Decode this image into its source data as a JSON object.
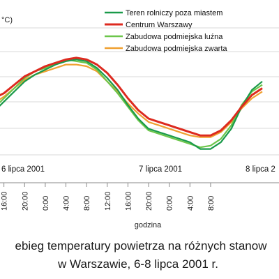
{
  "chart_data": {
    "type": "line",
    "ylabel_fragment": "°C)",
    "xlabel": "godzina",
    "x_start_label": "12:00",
    "x_step_hours": 4,
    "xtick_labels": [
      "16:00",
      "20:00",
      "0:00",
      "4:00",
      "8:00",
      "12:00",
      "16:00",
      "20:00",
      "0:00",
      "4:00",
      "8:00"
    ],
    "day_labels": [
      "6 lipca 2001",
      "7 lipca 2001",
      "8 lipca 2"
    ],
    "legend_position": "top-right",
    "grid": "horizontal",
    "series": [
      {
        "name": "Teren rolniczy poza miastem",
        "color": "#1a9a4a",
        "points": [
          [
            0,
            0.4
          ],
          [
            2,
            0.42
          ],
          [
            4,
            0.48
          ],
          [
            6,
            0.54
          ],
          [
            8,
            0.6
          ],
          [
            10,
            0.64
          ],
          [
            12,
            0.67
          ],
          [
            14,
            0.7
          ],
          [
            16,
            0.72
          ],
          [
            18,
            0.73
          ],
          [
            20,
            0.72
          ],
          [
            22,
            0.68
          ],
          [
            24,
            0.62
          ],
          [
            26,
            0.55
          ],
          [
            28,
            0.46
          ],
          [
            30,
            0.38
          ],
          [
            32,
            0.32
          ],
          [
            34,
            0.3
          ],
          [
            36,
            0.28
          ],
          [
            38,
            0.26
          ],
          [
            40,
            0.24
          ],
          [
            42,
            0.2
          ],
          [
            44,
            0.2
          ],
          [
            46,
            0.24
          ],
          [
            48,
            0.32
          ],
          [
            50,
            0.45
          ],
          [
            52,
            0.55
          ],
          [
            54,
            0.6
          ]
        ]
      },
      {
        "name": "Centrum Warszawy",
        "color": "#dd2a1f",
        "points": [
          [
            0,
            0.48
          ],
          [
            2,
            0.5
          ],
          [
            4,
            0.53
          ],
          [
            6,
            0.58
          ],
          [
            8,
            0.63
          ],
          [
            10,
            0.66
          ],
          [
            12,
            0.69
          ],
          [
            14,
            0.71
          ],
          [
            16,
            0.73
          ],
          [
            18,
            0.74
          ],
          [
            20,
            0.73
          ],
          [
            22,
            0.7
          ],
          [
            24,
            0.65
          ],
          [
            26,
            0.58
          ],
          [
            28,
            0.5
          ],
          [
            30,
            0.43
          ],
          [
            32,
            0.38
          ],
          [
            34,
            0.36
          ],
          [
            36,
            0.34
          ],
          [
            38,
            0.32
          ],
          [
            40,
            0.3
          ],
          [
            42,
            0.28
          ],
          [
            44,
            0.28
          ],
          [
            46,
            0.31
          ],
          [
            48,
            0.37
          ],
          [
            50,
            0.45
          ],
          [
            52,
            0.52
          ],
          [
            54,
            0.56
          ]
        ]
      },
      {
        "name": "Zabudowa podmiejska luźna",
        "color": "#6cc64a",
        "points": [
          [
            0,
            0.42
          ],
          [
            2,
            0.44
          ],
          [
            4,
            0.5
          ],
          [
            6,
            0.56
          ],
          [
            8,
            0.62
          ],
          [
            10,
            0.66
          ],
          [
            12,
            0.68
          ],
          [
            14,
            0.71
          ],
          [
            16,
            0.73
          ],
          [
            18,
            0.72
          ],
          [
            20,
            0.71
          ],
          [
            22,
            0.67
          ],
          [
            24,
            0.6
          ],
          [
            26,
            0.53
          ],
          [
            28,
            0.45
          ],
          [
            30,
            0.37
          ],
          [
            32,
            0.31
          ],
          [
            34,
            0.29
          ],
          [
            36,
            0.27
          ],
          [
            38,
            0.25
          ],
          [
            40,
            0.23
          ],
          [
            42,
            0.21
          ],
          [
            44,
            0.22
          ],
          [
            46,
            0.26
          ],
          [
            48,
            0.34
          ],
          [
            50,
            0.46
          ],
          [
            52,
            0.54
          ],
          [
            54,
            0.58
          ]
        ]
      },
      {
        "name": "Zabudowa podmiejska zwarta",
        "color": "#f0a030",
        "points": [
          [
            0,
            0.45
          ],
          [
            2,
            0.47
          ],
          [
            4,
            0.51
          ],
          [
            6,
            0.56
          ],
          [
            8,
            0.61
          ],
          [
            10,
            0.64
          ],
          [
            12,
            0.66
          ],
          [
            14,
            0.68
          ],
          [
            16,
            0.7
          ],
          [
            18,
            0.7
          ],
          [
            20,
            0.69
          ],
          [
            22,
            0.66
          ],
          [
            24,
            0.6
          ],
          [
            26,
            0.54
          ],
          [
            28,
            0.47
          ],
          [
            30,
            0.41
          ],
          [
            32,
            0.36
          ],
          [
            34,
            0.34
          ],
          [
            36,
            0.32
          ],
          [
            38,
            0.3
          ],
          [
            40,
            0.28
          ],
          [
            42,
            0.27
          ],
          [
            44,
            0.27
          ],
          [
            46,
            0.3
          ],
          [
            48,
            0.36
          ],
          [
            50,
            0.44
          ],
          [
            52,
            0.5
          ],
          [
            54,
            0.54
          ]
        ]
      }
    ]
  },
  "caption": {
    "line1": "ebieg temperatury powietrza na różnych stanow",
    "line2": "w Warszawie, 6-8 lipca 2001 r."
  }
}
